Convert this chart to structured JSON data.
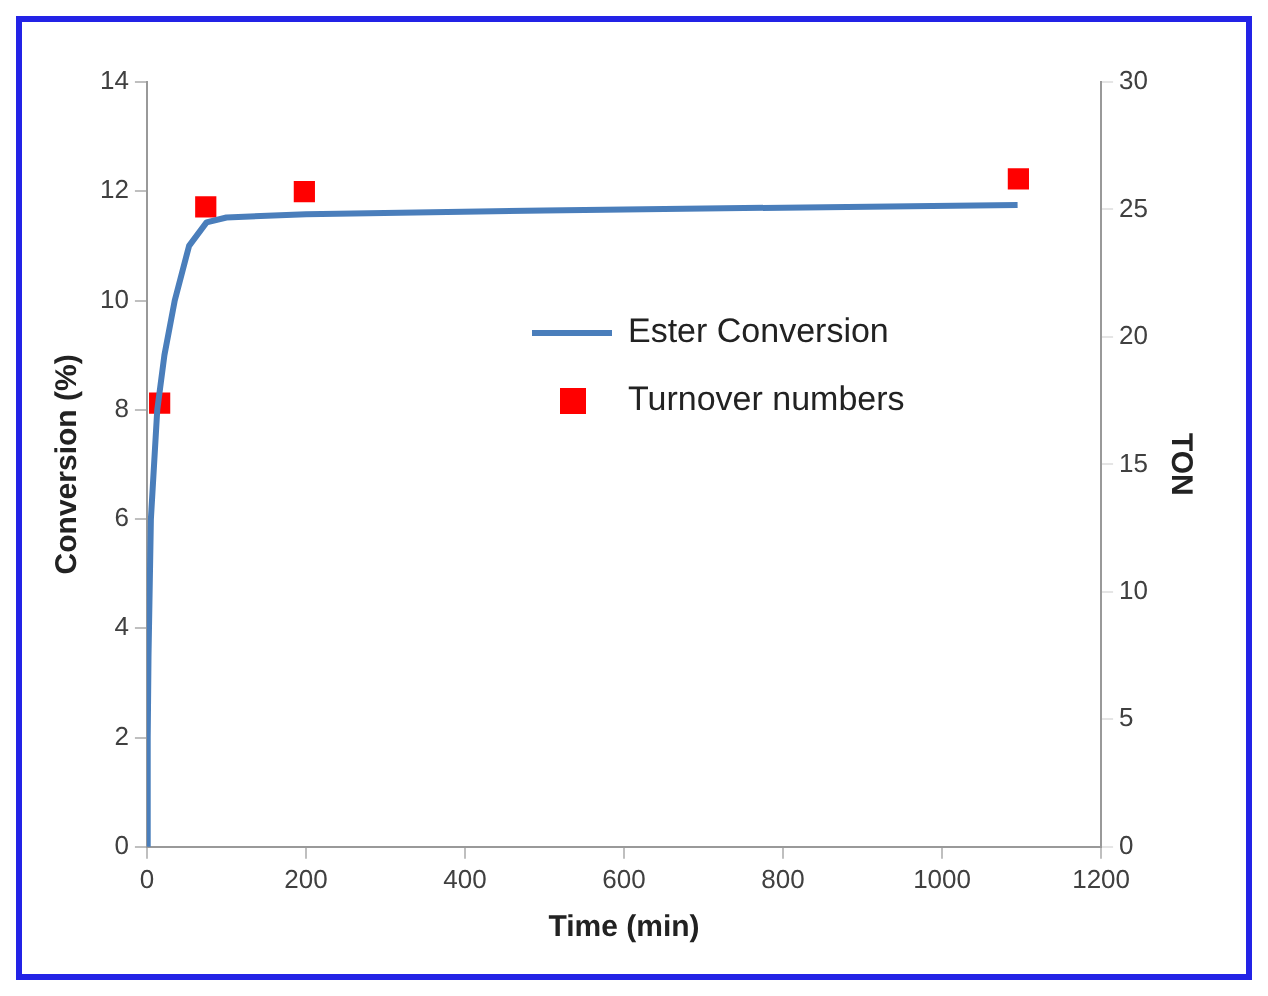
{
  "chart_data": {
    "type": "line",
    "xlabel": "Time (min)",
    "ylabel": "Conversion (%)",
    "y2label": "TON",
    "xlim": [
      0,
      1200
    ],
    "xticks": [
      0,
      200,
      400,
      600,
      800,
      1000,
      1200
    ],
    "ylim": [
      0,
      14
    ],
    "yticks": [
      0,
      2,
      4,
      6,
      8,
      10,
      12,
      14
    ],
    "y2lim": [
      0,
      30
    ],
    "y2ticks": [
      0,
      5,
      10,
      15,
      20,
      25,
      30
    ],
    "grid": false,
    "legend": "right",
    "series": [
      {
        "name": "Ester Conversion",
        "color": "#4a7ebb",
        "marker": "none",
        "line_style": "solid",
        "x": [
          0,
          1,
          2,
          5,
          13,
          22,
          35,
          53,
          75,
          100,
          200,
          500,
          800,
          1095
        ],
        "values": [
          0,
          2,
          3.5,
          6,
          8,
          9,
          10,
          11,
          11.43,
          11.52,
          11.58,
          11.65,
          11.7,
          11.75
        ]
      },
      {
        "name": "Turnover numbers",
        "type": "scatter",
        "axis": "y2",
        "color": "#ff0000",
        "marker": "square",
        "x": [
          16,
          74,
          198,
          1096
        ],
        "values": [
          17.4,
          25.1,
          25.7,
          26.2
        ]
      }
    ]
  }
}
